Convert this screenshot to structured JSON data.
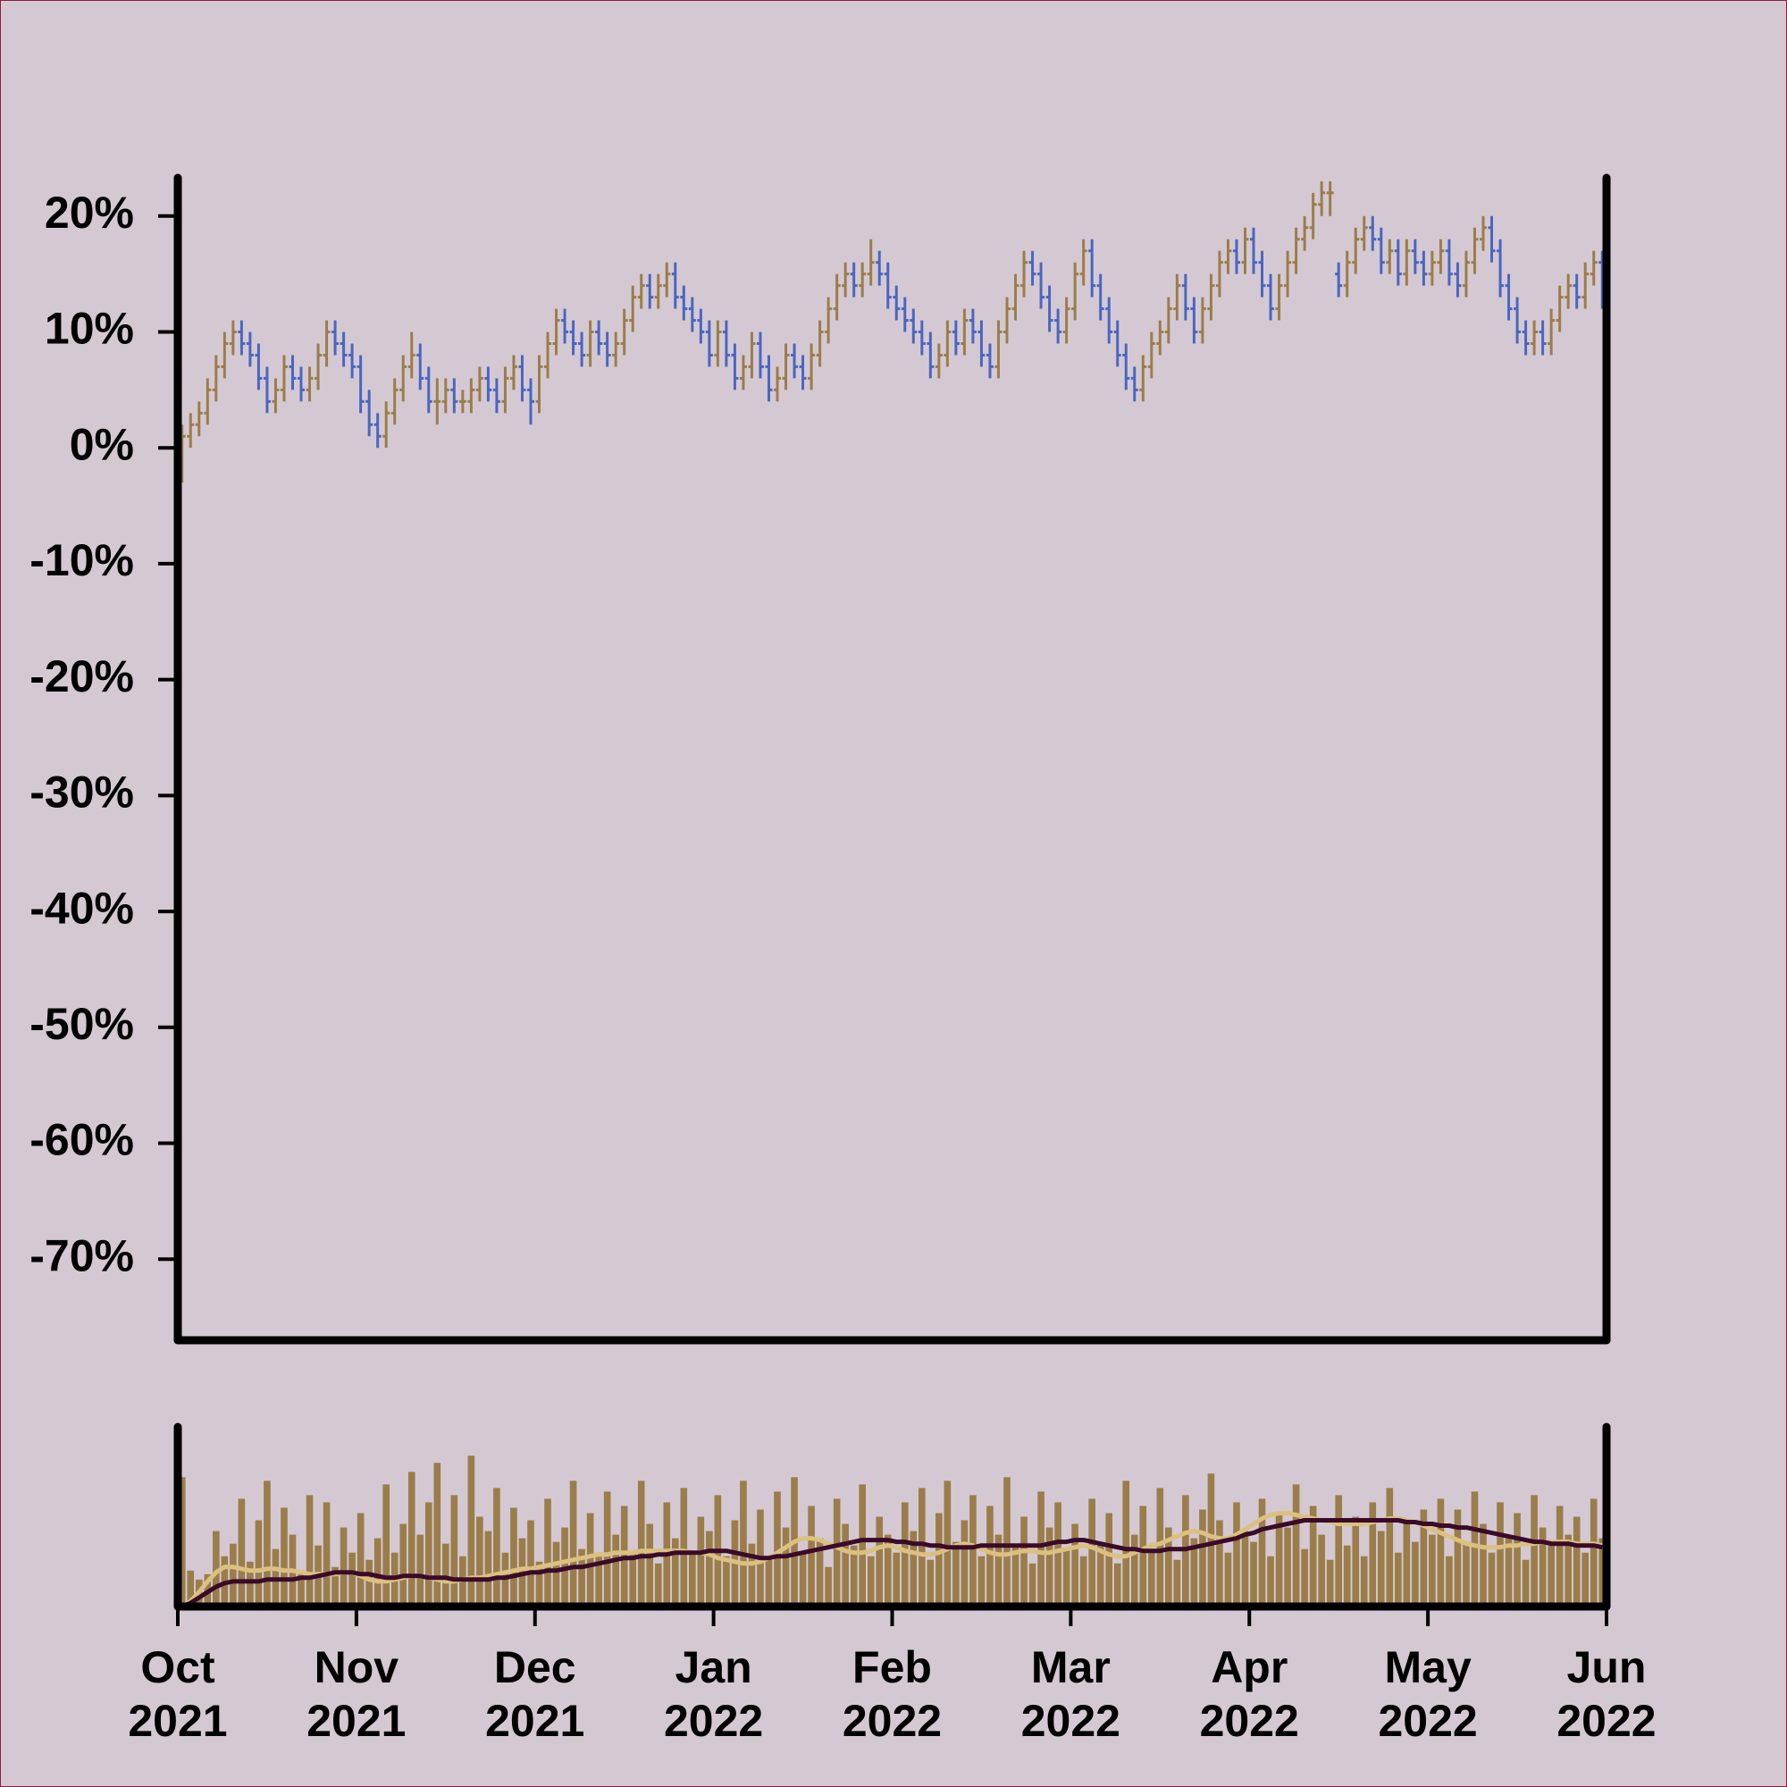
{
  "chart_data": {
    "type": "ohlc",
    "ylim": [
      -77,
      23.3
    ],
    "yticks": [
      {
        "value": 20,
        "label": "20%"
      },
      {
        "value": 10,
        "label": "10%"
      },
      {
        "value": 0,
        "label": "0%"
      },
      {
        "value": -10,
        "label": "-10%"
      },
      {
        "value": -20,
        "label": "-20%"
      },
      {
        "value": -30,
        "label": "-30%"
      },
      {
        "value": -40,
        "label": "-40%"
      },
      {
        "value": -50,
        "label": "-50%"
      },
      {
        "value": -60,
        "label": "-60%"
      },
      {
        "value": -70,
        "label": "-70%"
      }
    ],
    "xlim": [
      0,
      168
    ],
    "xticks": [
      {
        "value": 0,
        "label": "Oct 2021"
      },
      {
        "value": 21,
        "label": "Nov 2021"
      },
      {
        "value": 42,
        "label": "Dec 2021"
      },
      {
        "value": 63,
        "label": "Jan 2022"
      },
      {
        "value": 84,
        "label": "Feb 2022"
      },
      {
        "value": 105,
        "label": "Mar 2022"
      },
      {
        "value": 126,
        "label": "Apr 2022"
      },
      {
        "value": 147,
        "label": "May 2022"
      },
      {
        "value": 168,
        "label": "Jun 2022"
      }
    ],
    "up_color": "#9b7d4a",
    "down_color": "#4a66c0",
    "ohlc": [
      [
        0,
        2,
        -3,
        1
      ],
      [
        1,
        3,
        0,
        2
      ],
      [
        2,
        4,
        1,
        3
      ],
      [
        3,
        6,
        2,
        5
      ],
      [
        5,
        8,
        4,
        7
      ],
      [
        7,
        10,
        6,
        9
      ],
      [
        9,
        11,
        8,
        10
      ],
      [
        10,
        11,
        8,
        9
      ],
      [
        9,
        10,
        7,
        8
      ],
      [
        8,
        9,
        5,
        6
      ],
      [
        6,
        7,
        3,
        4
      ],
      [
        4,
        6,
        3,
        5
      ],
      [
        5,
        8,
        4,
        7
      ],
      [
        7,
        8,
        5,
        6
      ],
      [
        6,
        7,
        4,
        5
      ],
      [
        5,
        7,
        4,
        6
      ],
      [
        6,
        9,
        5,
        8
      ],
      [
        8,
        11,
        7,
        10
      ],
      [
        10,
        11,
        8,
        9
      ],
      [
        9,
        10,
        7,
        8
      ],
      [
        8,
        9,
        6,
        7
      ],
      [
        7,
        8,
        3,
        4
      ],
      [
        4,
        5,
        1,
        2
      ],
      [
        2,
        3,
        0,
        1
      ],
      [
        1,
        4,
        0,
        3
      ],
      [
        3,
        6,
        2,
        5
      ],
      [
        5,
        8,
        4,
        7
      ],
      [
        7,
        10,
        6,
        8
      ],
      [
        8,
        9,
        5,
        6
      ],
      [
        6,
        7,
        3,
        4
      ],
      [
        4,
        6,
        2,
        4
      ],
      [
        4,
        6,
        3,
        5
      ],
      [
        5,
        6,
        3,
        4
      ],
      [
        4,
        5,
        3,
        4
      ],
      [
        4,
        6,
        3,
        5
      ],
      [
        5,
        7,
        4,
        6
      ],
      [
        6,
        7,
        4,
        5
      ],
      [
        5,
        6,
        3,
        4
      ],
      [
        4,
        7,
        3,
        6
      ],
      [
        6,
        8,
        5,
        7
      ],
      [
        7,
        8,
        4,
        5
      ],
      [
        5,
        6,
        2,
        4
      ],
      [
        4,
        8,
        3,
        7
      ],
      [
        7,
        10,
        6,
        9
      ],
      [
        9,
        12,
        8,
        11
      ],
      [
        11,
        12,
        9,
        10
      ],
      [
        10,
        11,
        8,
        9
      ],
      [
        9,
        10,
        7,
        8
      ],
      [
        8,
        11,
        7,
        10
      ],
      [
        10,
        11,
        8,
        9
      ],
      [
        9,
        10,
        7,
        8
      ],
      [
        8,
        10,
        7,
        9
      ],
      [
        9,
        12,
        8,
        11
      ],
      [
        11,
        14,
        10,
        13
      ],
      [
        13,
        15,
        12,
        14
      ],
      [
        14,
        15,
        12,
        13
      ],
      [
        13,
        15,
        12,
        14
      ],
      [
        14,
        16,
        13,
        15
      ],
      [
        15,
        16,
        12,
        13
      ],
      [
        13,
        14,
        11,
        12
      ],
      [
        12,
        13,
        10,
        11
      ],
      [
        11,
        12,
        9,
        10
      ],
      [
        10,
        11,
        7,
        8
      ],
      [
        8,
        11,
        7,
        10
      ],
      [
        10,
        11,
        7,
        8
      ],
      [
        8,
        9,
        5,
        6
      ],
      [
        6,
        8,
        5,
        7
      ],
      [
        7,
        10,
        6,
        9
      ],
      [
        9,
        10,
        6,
        7
      ],
      [
        7,
        8,
        4,
        5
      ],
      [
        5,
        7,
        4,
        6
      ],
      [
        6,
        9,
        5,
        8
      ],
      [
        8,
        9,
        6,
        7
      ],
      [
        7,
        8,
        5,
        6
      ],
      [
        6,
        9,
        5,
        8
      ],
      [
        8,
        11,
        7,
        10
      ],
      [
        10,
        13,
        9,
        12
      ],
      [
        12,
        15,
        11,
        14
      ],
      [
        14,
        16,
        13,
        15
      ],
      [
        15,
        16,
        13,
        14
      ],
      [
        14,
        16,
        13,
        15
      ],
      [
        15,
        18,
        14,
        16
      ],
      [
        16,
        17,
        14,
        15
      ],
      [
        15,
        16,
        12,
        13
      ],
      [
        13,
        14,
        11,
        12
      ],
      [
        12,
        13,
        10,
        11
      ],
      [
        11,
        12,
        9,
        10
      ],
      [
        10,
        11,
        8,
        9
      ],
      [
        9,
        10,
        6,
        7
      ],
      [
        7,
        9,
        6,
        8
      ],
      [
        8,
        11,
        7,
        10
      ],
      [
        10,
        11,
        8,
        9
      ],
      [
        9,
        12,
        8,
        11
      ],
      [
        11,
        12,
        9,
        10
      ],
      [
        10,
        11,
        7,
        8
      ],
      [
        8,
        9,
        6,
        7
      ],
      [
        7,
        11,
        6,
        10
      ],
      [
        10,
        13,
        9,
        12
      ],
      [
        12,
        15,
        11,
        14
      ],
      [
        14,
        17,
        13,
        16
      ],
      [
        16,
        17,
        14,
        15
      ],
      [
        15,
        16,
        12,
        13
      ],
      [
        13,
        14,
        10,
        11
      ],
      [
        11,
        12,
        9,
        10
      ],
      [
        10,
        13,
        9,
        12
      ],
      [
        12,
        16,
        11,
        15
      ],
      [
        15,
        18,
        14,
        17
      ],
      [
        17,
        18,
        13,
        14
      ],
      [
        14,
        15,
        11,
        12
      ],
      [
        12,
        13,
        9,
        10
      ],
      [
        10,
        11,
        7,
        8
      ],
      [
        8,
        9,
        5,
        6
      ],
      [
        6,
        7,
        4,
        5
      ],
      [
        5,
        8,
        4,
        7
      ],
      [
        7,
        10,
        6,
        9
      ],
      [
        9,
        11,
        8,
        10
      ],
      [
        10,
        13,
        9,
        12
      ],
      [
        12,
        15,
        11,
        14
      ],
      [
        14,
        15,
        11,
        12
      ],
      [
        12,
        13,
        9,
        10
      ],
      [
        10,
        13,
        9,
        12
      ],
      [
        12,
        15,
        11,
        14
      ],
      [
        14,
        17,
        13,
        16
      ],
      [
        16,
        18,
        15,
        17
      ],
      [
        17,
        18,
        15,
        16
      ],
      [
        16,
        19,
        15,
        18
      ],
      [
        18,
        19,
        15,
        16
      ],
      [
        16,
        17,
        13,
        14
      ],
      [
        14,
        15,
        11,
        12
      ],
      [
        12,
        15,
        11,
        14
      ],
      [
        14,
        17,
        13,
        16
      ],
      [
        16,
        19,
        15,
        18
      ],
      [
        18,
        20,
        17,
        19
      ],
      [
        19,
        22,
        18,
        21
      ],
      [
        21,
        23,
        20,
        22
      ],
      [
        22,
        23,
        20,
        22
      ],
      [
        15,
        16,
        13,
        14
      ],
      [
        14,
        17,
        13,
        16
      ],
      [
        16,
        19,
        15,
        18
      ],
      [
        18,
        20,
        17,
        19
      ],
      [
        19,
        20,
        17,
        18
      ],
      [
        18,
        19,
        15,
        16
      ],
      [
        16,
        18,
        15,
        17
      ],
      [
        17,
        18,
        14,
        15
      ],
      [
        15,
        18,
        14,
        17
      ],
      [
        17,
        18,
        15,
        16
      ],
      [
        16,
        17,
        14,
        15
      ],
      [
        15,
        17,
        14,
        16
      ],
      [
        16,
        18,
        15,
        17
      ],
      [
        17,
        18,
        14,
        15
      ],
      [
        15,
        16,
        13,
        14
      ],
      [
        14,
        17,
        13,
        16
      ],
      [
        16,
        19,
        15,
        18
      ],
      [
        18,
        20,
        17,
        19
      ],
      [
        19,
        20,
        16,
        17
      ],
      [
        17,
        18,
        13,
        14
      ],
      [
        14,
        15,
        11,
        12
      ],
      [
        12,
        13,
        9,
        10
      ],
      [
        10,
        11,
        8,
        9
      ],
      [
        9,
        11,
        8,
        10
      ],
      [
        10,
        11,
        8,
        9
      ],
      [
        9,
        12,
        8,
        11
      ],
      [
        11,
        14,
        10,
        13
      ],
      [
        13,
        15,
        12,
        14
      ],
      [
        14,
        15,
        12,
        13
      ],
      [
        13,
        16,
        12,
        15
      ],
      [
        15,
        17,
        14,
        16
      ],
      [
        16,
        17,
        12,
        13
      ]
    ],
    "volume": {
      "type": "bar",
      "color": "#9b7d4a",
      "ylim": [
        0,
        100
      ],
      "values": [
        72,
        20,
        15,
        18,
        42,
        28,
        35,
        60,
        25,
        48,
        70,
        32,
        55,
        40,
        18,
        62,
        34,
        58,
        22,
        44,
        30,
        52,
        26,
        38,
        68,
        30,
        46,
        75,
        40,
        58,
        80,
        35,
        62,
        28,
        84,
        50,
        42,
        66,
        30,
        55,
        38,
        48,
        25,
        60,
        36,
        44,
        70,
        32,
        52,
        28,
        64,
        40,
        56,
        30,
        70,
        46,
        24,
        58,
        38,
        66,
        30,
        50,
        42,
        62,
        28,
        48,
        70,
        35,
        54,
        26,
        64,
        44,
        72,
        30,
        56,
        38,
        22,
        60,
        46,
        34,
        68,
        28,
        50,
        40,
        30,
        58,
        42,
        66,
        26,
        52,
        70,
        36,
        48,
        62,
        28,
        56,
        40,
        72,
        34,
        50,
        24,
        64,
        44,
        58,
        32,
        46,
        28,
        60,
        36,
        52,
        24,
        70,
        40,
        56,
        30,
        66,
        44,
        26,
        62,
        38,
        54,
        74,
        48,
        30,
        58,
        42,
        36,
        60,
        28,
        52,
        44,
        68,
        32,
        56,
        40,
        26,
        62,
        34,
        50,
        28,
        58,
        42,
        66,
        30,
        48,
        36,
        54,
        40,
        60,
        28,
        54,
        36,
        64,
        46,
        30,
        58,
        38,
        52,
        26,
        62,
        44,
        34,
        56,
        40,
        50,
        30,
        60,
        38
      ],
      "series": [
        {
          "color": "#dcc07f",
          "values": [
            0,
            3,
            8,
            14,
            19,
            22,
            22,
            21,
            20,
            20,
            21,
            21,
            20,
            20,
            19,
            18,
            18,
            18,
            18,
            19,
            19,
            17,
            15,
            14,
            14,
            15,
            16,
            17,
            17,
            16,
            15,
            14,
            14,
            15,
            16,
            16,
            17,
            18,
            19,
            20,
            21,
            21,
            22,
            23,
            24,
            25,
            26,
            27,
            28,
            29,
            29,
            30,
            30,
            30,
            31,
            31,
            31,
            31,
            31,
            31,
            30,
            30,
            29,
            27,
            26,
            25,
            24,
            24,
            25,
            27,
            30,
            33,
            36,
            38,
            38,
            37,
            35,
            33,
            31,
            30,
            30,
            31,
            33,
            34,
            33,
            31,
            30,
            29,
            29,
            30,
            32,
            34,
            35,
            34,
            32,
            30,
            29,
            29,
            30,
            31,
            31,
            30,
            30,
            31,
            32,
            33,
            34,
            33,
            31,
            29,
            28,
            28,
            30,
            32,
            34,
            35,
            37,
            39,
            41,
            42,
            41,
            39,
            38,
            38,
            40,
            43,
            46,
            49,
            51,
            52,
            52,
            51,
            50,
            49,
            48,
            47,
            46,
            46,
            46,
            46,
            47,
            48,
            49,
            49,
            48,
            47,
            45,
            43,
            41,
            39,
            37,
            35,
            34,
            33,
            33,
            33,
            34,
            34,
            35,
            35,
            36,
            36,
            36,
            36,
            35,
            35,
            35,
            34
          ]
        },
        {
          "color": "#3a0a2a",
          "values": [
            0,
            2,
            5,
            8,
            11,
            13,
            14,
            14,
            14,
            14,
            15,
            15,
            15,
            15,
            16,
            16,
            17,
            18,
            19,
            19,
            19,
            18,
            18,
            17,
            16,
            16,
            17,
            17,
            17,
            16,
            16,
            16,
            15,
            15,
            15,
            15,
            15,
            16,
            16,
            17,
            18,
            19,
            19,
            20,
            20,
            21,
            22,
            22,
            23,
            24,
            25,
            26,
            27,
            27,
            28,
            28,
            29,
            29,
            30,
            30,
            30,
            30,
            31,
            31,
            31,
            30,
            29,
            28,
            27,
            27,
            28,
            28,
            29,
            30,
            31,
            32,
            33,
            34,
            35,
            36,
            37,
            37,
            37,
            37,
            36,
            36,
            35,
            35,
            34,
            34,
            33,
            33,
            33,
            33,
            34,
            34,
            34,
            34,
            34,
            34,
            34,
            34,
            35,
            36,
            36,
            37,
            37,
            36,
            35,
            34,
            33,
            32,
            32,
            31,
            31,
            31,
            32,
            32,
            32,
            33,
            34,
            35,
            36,
            37,
            38,
            40,
            41,
            43,
            44,
            45,
            46,
            47,
            48,
            48,
            48,
            48,
            48,
            48,
            48,
            48,
            48,
            48,
            48,
            48,
            47,
            47,
            46,
            46,
            45,
            45,
            44,
            44,
            43,
            42,
            41,
            40,
            39,
            38,
            37,
            36,
            36,
            35,
            35,
            35,
            34,
            34,
            34,
            33
          ]
        }
      ]
    }
  }
}
